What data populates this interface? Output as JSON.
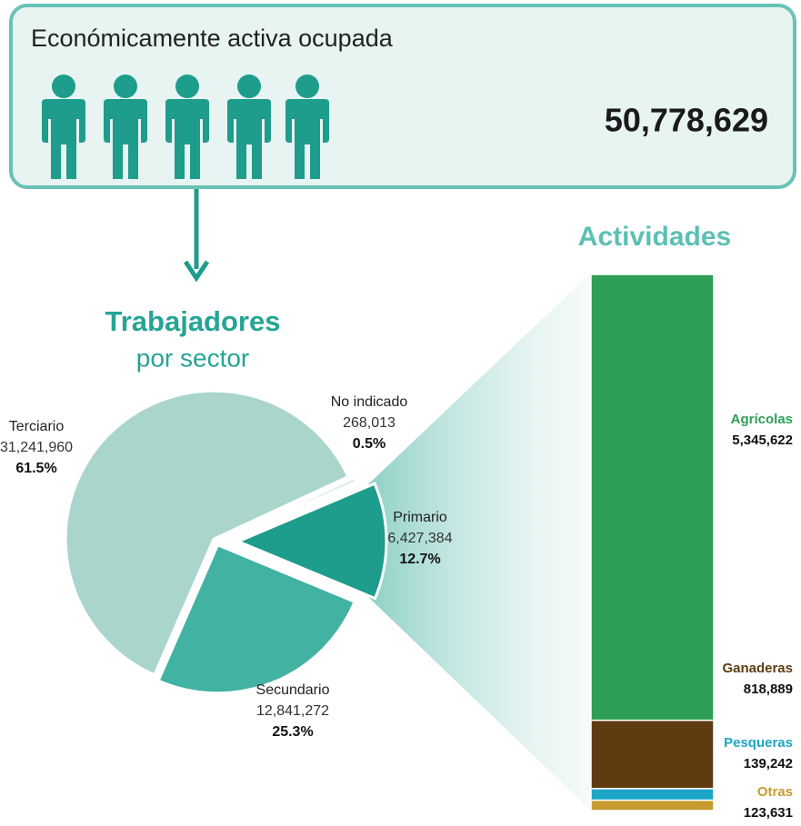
{
  "header": {
    "title": "Económicamente activa ocupada",
    "total": "50,778,629"
  },
  "chart_data": [
    {
      "type": "pie",
      "title": "Trabajadores",
      "subtitle": "por sector",
      "categories": [
        "Primario",
        "Secundario",
        "Terciario",
        "No indicado"
      ],
      "values": [
        6427384,
        12841272,
        31241960,
        268013
      ],
      "value_labels": [
        "6,427,384",
        "12,841,272",
        "31,241,960",
        "268,013"
      ],
      "percents": [
        12.7,
        25.3,
        61.5,
        0.5
      ],
      "percent_labels": [
        "12.7%",
        "25.3%",
        "61.5%",
        "0.5%"
      ],
      "colors": [
        "#1e9c8c",
        "#42b2a3",
        "#a9d5cd",
        "#d6eeea"
      ]
    },
    {
      "type": "stacked_bar",
      "title": "Actividades",
      "categories": [
        "Agrícolas",
        "Ganaderas",
        "Pesqueras",
        "Otras"
      ],
      "values": [
        5345622,
        818889,
        139242,
        123631
      ],
      "value_labels": [
        "5,345,622",
        "818,889",
        "139,242",
        "123,631"
      ],
      "colors": [
        "#2f9e56",
        "#5f3b12",
        "#1ca5c6",
        "#c89b30"
      ]
    }
  ]
}
